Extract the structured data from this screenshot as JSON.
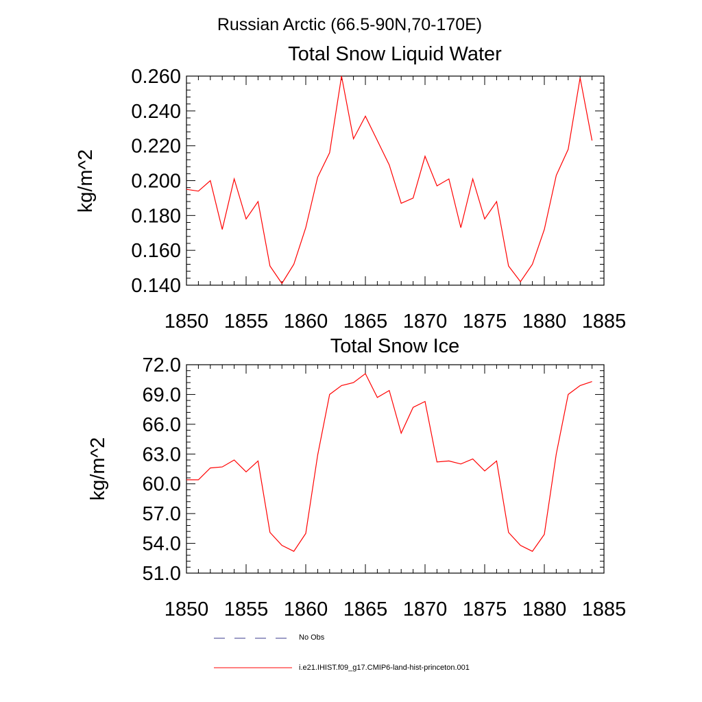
{
  "page": {
    "title": "Russian Arctic (66.5-90N,70-170E)"
  },
  "legend": {
    "placement": "bottom",
    "entries": [
      {
        "label": "No Obs",
        "color": "#3a3a8c",
        "style": "dashed"
      },
      {
        "label": "i.e21.IHIST.f09_g17.CMIP6-land-hist-princeton.001",
        "color": "#ff0000",
        "style": "solid"
      }
    ]
  },
  "chart_data": [
    {
      "type": "line",
      "title": "Total Snow Liquid Water",
      "xlabel": "",
      "ylabel": "kg/m^2",
      "xlim": [
        1850,
        1885
      ],
      "ylim": [
        0.14,
        0.26
      ],
      "x_ticks": [
        "1850",
        "1855",
        "1860",
        "1865",
        "1870",
        "1875",
        "1880",
        "1885"
      ],
      "y_ticks": [
        "0.140",
        "0.160",
        "0.180",
        "0.200",
        "0.220",
        "0.240",
        "0.260"
      ],
      "grid": false,
      "x": [
        1850,
        1851,
        1852,
        1853,
        1854,
        1855,
        1856,
        1857,
        1858,
        1859,
        1860,
        1861,
        1862,
        1863,
        1864,
        1865,
        1866,
        1867,
        1868,
        1869,
        1870,
        1871,
        1872,
        1873,
        1874,
        1875,
        1876,
        1877,
        1878,
        1879,
        1880,
        1881,
        1882,
        1883,
        1884
      ],
      "series": [
        {
          "color": "#ff0000",
          "values": [
            0.195,
            0.194,
            0.2,
            0.172,
            0.201,
            0.178,
            0.188,
            0.151,
            0.141,
            0.152,
            0.173,
            0.202,
            0.216,
            0.26,
            0.224,
            0.237,
            0.223,
            0.209,
            0.187,
            0.19,
            0.214,
            0.197,
            0.201,
            0.173,
            0.201,
            0.178,
            0.188,
            0.151,
            0.142,
            0.152,
            0.172,
            0.203,
            0.218,
            0.259,
            0.223
          ]
        }
      ]
    },
    {
      "type": "line",
      "title": "Total Snow Ice",
      "xlabel": "",
      "ylabel": "kg/m^2",
      "xlim": [
        1850,
        1885
      ],
      "ylim": [
        51.0,
        72.0
      ],
      "x_ticks": [
        "1850",
        "1855",
        "1860",
        "1865",
        "1870",
        "1875",
        "1880",
        "1885"
      ],
      "y_ticks": [
        "51.0",
        "54.0",
        "57.0",
        "60.0",
        "63.0",
        "66.0",
        "69.0",
        "72.0"
      ],
      "grid": false,
      "x": [
        1850,
        1851,
        1852,
        1853,
        1854,
        1855,
        1856,
        1857,
        1858,
        1859,
        1860,
        1861,
        1862,
        1863,
        1864,
        1865,
        1866,
        1867,
        1868,
        1869,
        1870,
        1871,
        1872,
        1873,
        1874,
        1875,
        1876,
        1877,
        1878,
        1879,
        1880,
        1881,
        1882,
        1883,
        1884
      ],
      "series": [
        {
          "color": "#ff0000",
          "values": [
            60.4,
            60.4,
            61.6,
            61.7,
            62.4,
            61.2,
            62.3,
            55.1,
            53.8,
            53.2,
            55.0,
            62.9,
            69.0,
            69.9,
            70.2,
            71.1,
            68.7,
            69.4,
            65.1,
            67.7,
            68.3,
            62.2,
            62.3,
            62.0,
            62.5,
            61.3,
            62.3,
            55.1,
            53.8,
            53.2,
            54.9,
            63.0,
            69.0,
            69.9,
            70.3
          ]
        }
      ]
    }
  ]
}
